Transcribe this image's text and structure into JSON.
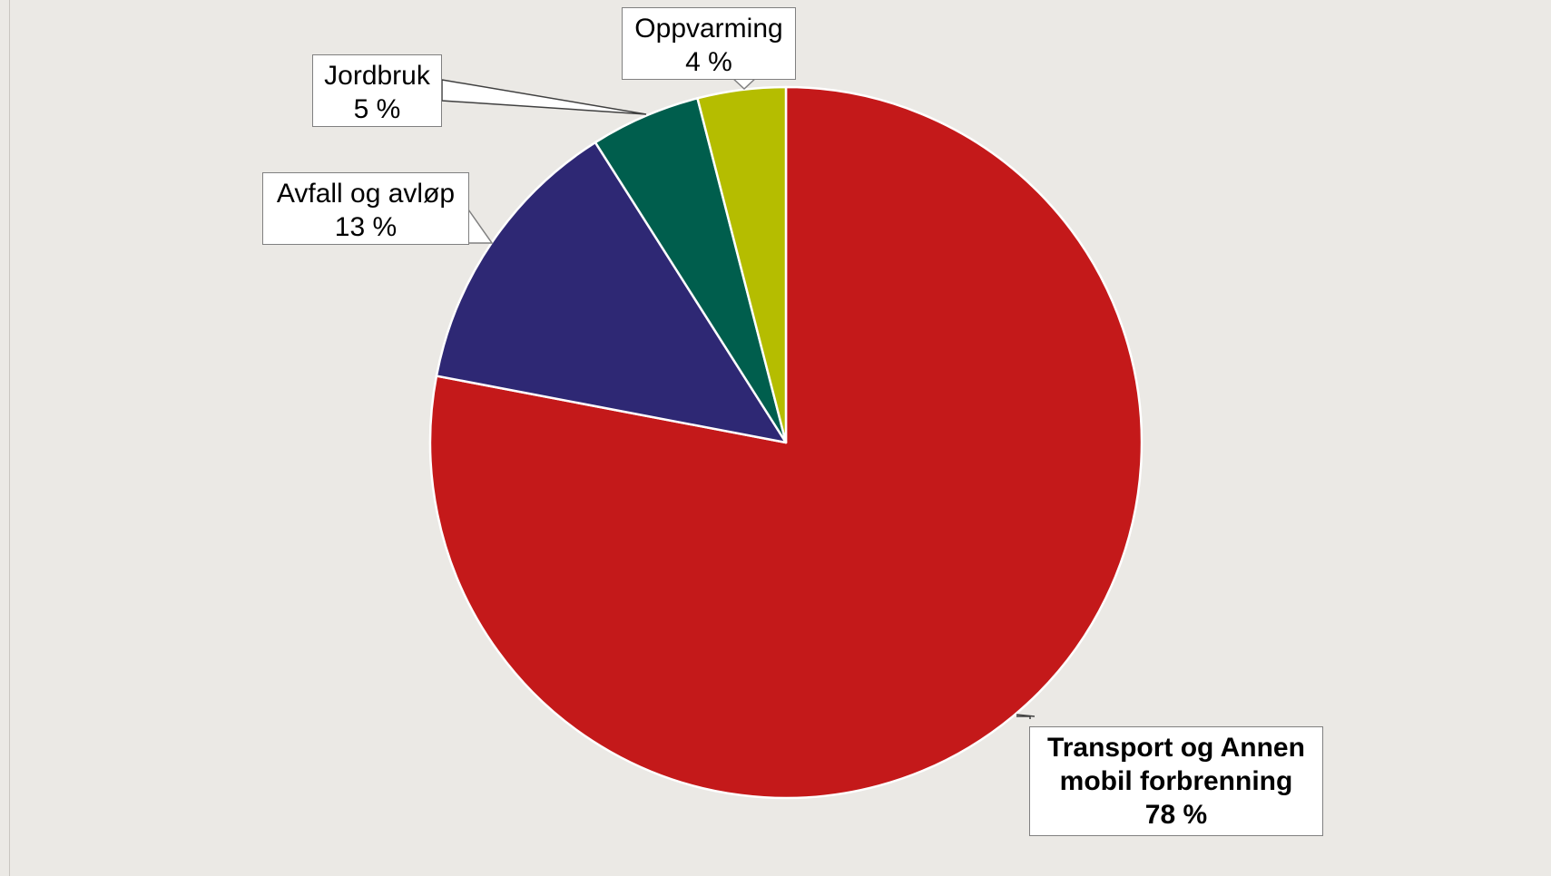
{
  "chart_data": {
    "type": "pie",
    "start_angle_deg": 0,
    "direction": "clockwise",
    "slices": [
      {
        "label": "Transport og Annen mobil forbrenning",
        "value": 78,
        "value_label": "78 %",
        "color": "#c4191a",
        "emphasis": "bold"
      },
      {
        "label": "Avfall og avløp",
        "value": 13,
        "value_label": "13 %",
        "color": "#2e2874"
      },
      {
        "label": "Jordbruk",
        "value": 5,
        "value_label": "5 %",
        "color": "#005e4d"
      },
      {
        "label": "Oppvarming",
        "value": 4,
        "value_label": "4 %",
        "color": "#b5bd00"
      }
    ],
    "legend": "none",
    "labels": "callouts"
  },
  "callouts": {
    "transport": {
      "line1": "Transport og Annen",
      "line2": "mobil forbrenning",
      "line3": "78 %"
    },
    "avfall": {
      "line1": "Avfall og avløp",
      "line2": "13 %"
    },
    "jordbruk": {
      "line1": "Jordbruk",
      "line2": "5 %"
    },
    "oppvarming": {
      "line1": "Oppvarming",
      "line2": "4 %"
    }
  }
}
